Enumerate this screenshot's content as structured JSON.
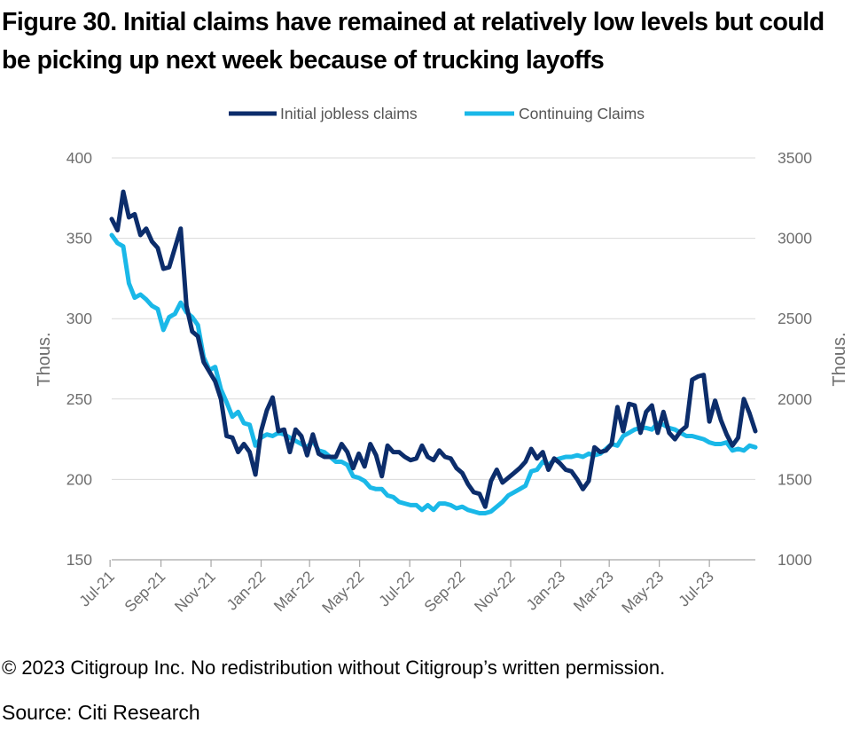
{
  "title": "Figure 30. Initial claims have remained at relatively low levels but could be picking up next week because of trucking layoffs",
  "footer": {
    "copyright": "© 2023 Citigroup Inc. No redistribution without Citigroup’s written permission.",
    "source": "Source: Citi Research"
  },
  "colors": {
    "initial": "#0c2d6b",
    "continuing": "#1ab8e8",
    "grid": "#d9d9d9",
    "axis": "#a6a6a6"
  },
  "chart_data": {
    "type": "line",
    "title": "",
    "legend_position": "top-center",
    "grid": "horizontal",
    "x_start": "2021-07-03",
    "x_end": "2023-08-26",
    "x_step_days": 7,
    "x_ticks": [
      "Jul-21",
      "Sep-21",
      "Nov-21",
      "Jan-22",
      "Mar-22",
      "May-22",
      "Jul-22",
      "Sep-22",
      "Nov-22",
      "Jan-23",
      "Mar-23",
      "May-23",
      "Jul-23"
    ],
    "x_tick_dates": [
      "2021-07-01",
      "2021-09-01",
      "2021-11-01",
      "2022-01-01",
      "2022-03-01",
      "2022-05-01",
      "2022-07-01",
      "2022-09-01",
      "2022-11-01",
      "2023-01-01",
      "2023-03-01",
      "2023-05-01",
      "2023-07-01"
    ],
    "y_left": {
      "label": "Thous.",
      "range": [
        150,
        400
      ],
      "ticks": [
        150,
        200,
        250,
        300,
        350,
        400
      ]
    },
    "y_right": {
      "label": "Thous.",
      "range": [
        1000,
        3500
      ],
      "ticks": [
        1000,
        1500,
        2000,
        2500,
        3000,
        3500
      ]
    },
    "series": [
      {
        "name": "Initial jobless claims",
        "axis": "left",
        "values": [
          362,
          355,
          379,
          363,
          365,
          352,
          356,
          348,
          344,
          331,
          332,
          344,
          356,
          308,
          292,
          289,
          273,
          267,
          261,
          250,
          227,
          226,
          217,
          222,
          217,
          203,
          230,
          243,
          251,
          230,
          231,
          217,
          231,
          227,
          215,
          228,
          216,
          214,
          214,
          214,
          222,
          217,
          207,
          216,
          208,
          222,
          215,
          202,
          221,
          217,
          217,
          214,
          212,
          213,
          221,
          214,
          212,
          218,
          214,
          213,
          207,
          204,
          197,
          192,
          191,
          183,
          199,
          206,
          198,
          201,
          204,
          207,
          211,
          219,
          213,
          217,
          206,
          213,
          210,
          206,
          205,
          200,
          194,
          199,
          220,
          217,
          218,
          222,
          245,
          230,
          247,
          246,
          229,
          242,
          246,
          229,
          242,
          229,
          225,
          230,
          233,
          262,
          264,
          265,
          236,
          249,
          237,
          228,
          221,
          226,
          250,
          241,
          230
        ]
      },
      {
        "name": "Continuing Claims",
        "axis": "right",
        "values": [
          3020,
          2970,
          2950,
          2720,
          2630,
          2650,
          2620,
          2580,
          2560,
          2430,
          2510,
          2530,
          2600,
          2540,
          2510,
          2460,
          2260,
          2180,
          2200,
          2060,
          1980,
          1890,
          1920,
          1850,
          1840,
          1710,
          1760,
          1780,
          1770,
          1790,
          1780,
          1760,
          1740,
          1720,
          1700,
          1740,
          1680,
          1670,
          1640,
          1610,
          1610,
          1590,
          1520,
          1510,
          1490,
          1450,
          1440,
          1440,
          1400,
          1390,
          1360,
          1350,
          1340,
          1340,
          1310,
          1340,
          1310,
          1350,
          1350,
          1340,
          1320,
          1330,
          1310,
          1300,
          1290,
          1290,
          1300,
          1330,
          1360,
          1400,
          1420,
          1440,
          1460,
          1550,
          1560,
          1610,
          1590,
          1620,
          1630,
          1640,
          1640,
          1650,
          1640,
          1660,
          1650,
          1660,
          1690,
          1720,
          1710,
          1770,
          1790,
          1810,
          1820,
          1820,
          1810,
          1850,
          1840,
          1820,
          1810,
          1790,
          1770,
          1770,
          1760,
          1750,
          1730,
          1720,
          1720,
          1730,
          1680,
          1690,
          1680,
          1710,
          1700
        ]
      }
    ]
  }
}
